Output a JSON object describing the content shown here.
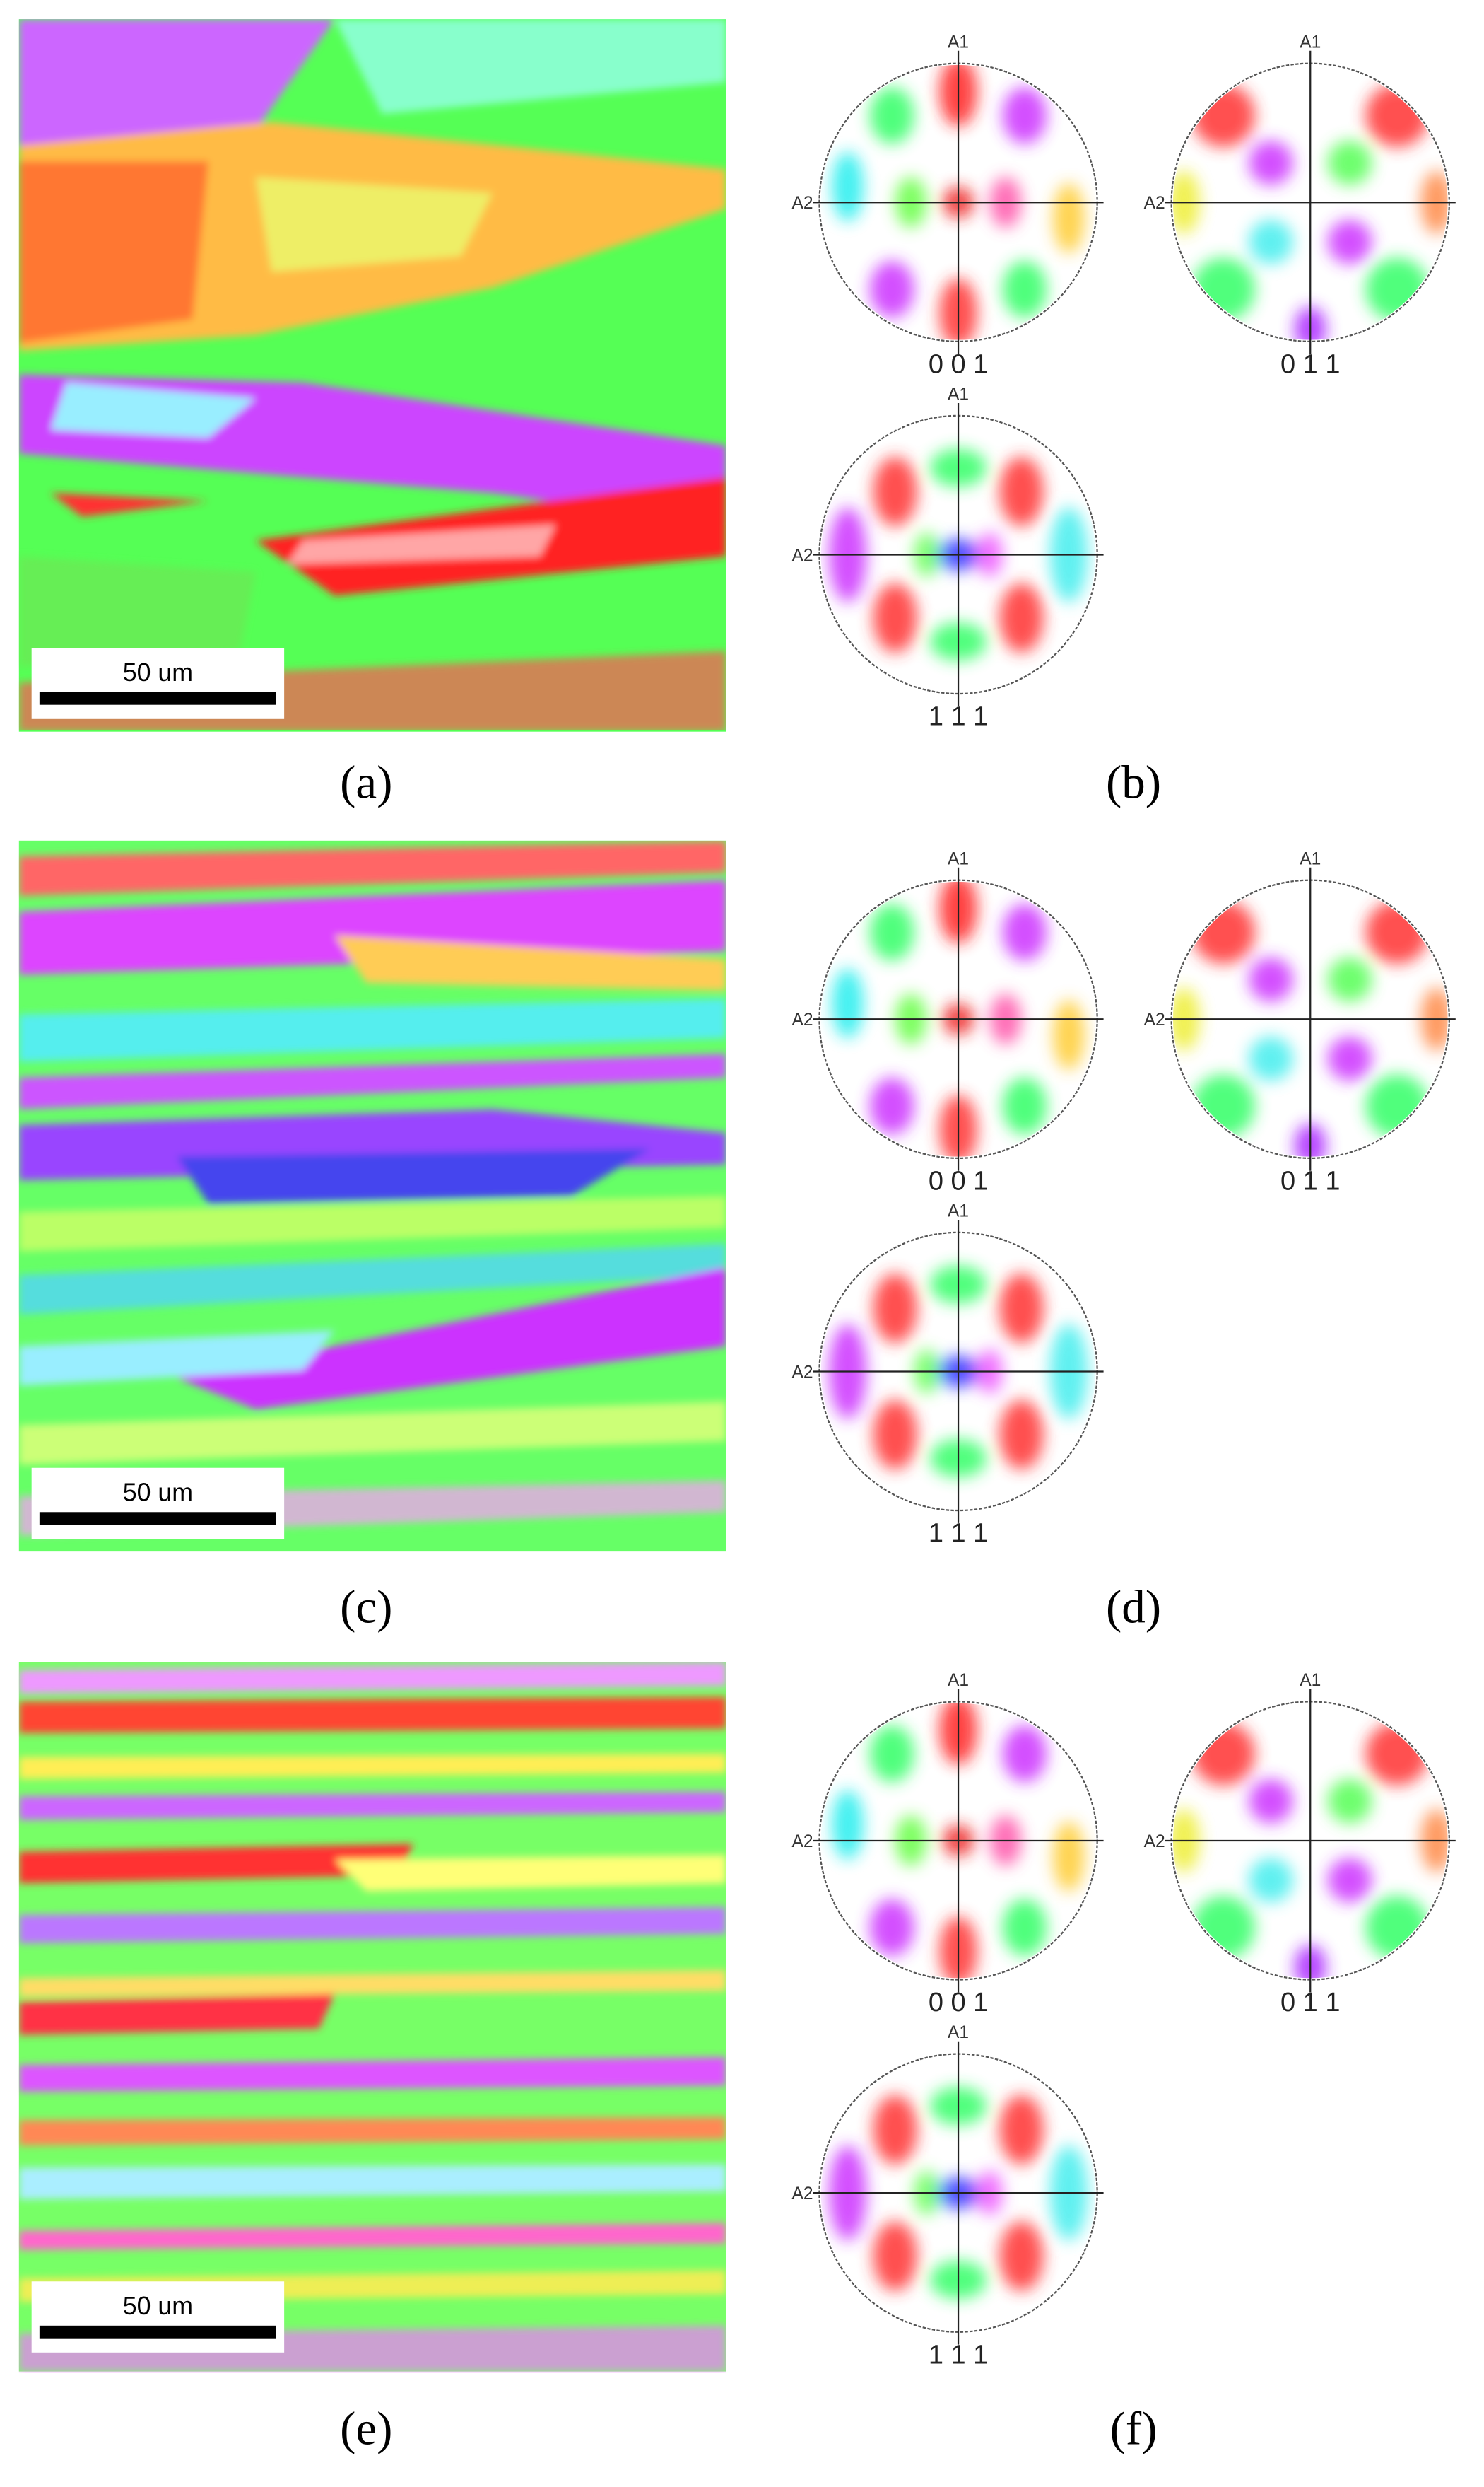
{
  "figure": {
    "panels": [
      {
        "label": "(a)",
        "scale_bar": "50 um"
      },
      {
        "label": "(b)",
        "pole_figures": [
          {
            "title": "0 0 1",
            "top_axis": "A1",
            "side_axis": "A2"
          },
          {
            "title": "0 1 1",
            "top_axis": "A1",
            "side_axis": "A2"
          },
          {
            "title": "1 1 1",
            "top_axis": "A1",
            "side_axis": "A2"
          }
        ]
      },
      {
        "label": "(c)",
        "scale_bar": "50 um"
      },
      {
        "label": "(d)",
        "pole_figures": [
          {
            "title": "0 0 1",
            "top_axis": "A1",
            "side_axis": "A2"
          },
          {
            "title": "0 1 1",
            "top_axis": "A1",
            "side_axis": "A2"
          },
          {
            "title": "1 1 1",
            "top_axis": "A1",
            "side_axis": "A2"
          }
        ]
      },
      {
        "label": "(e)",
        "scale_bar": "50 um"
      },
      {
        "label": "(f)",
        "pole_figures": [
          {
            "title": "0 0 1",
            "top_axis": "A1",
            "side_axis": "A2"
          },
          {
            "title": "0 1 1",
            "top_axis": "A1",
            "side_axis": "A2"
          },
          {
            "title": "1 1 1",
            "top_axis": "A1",
            "side_axis": "A2"
          }
        ]
      }
    ]
  }
}
